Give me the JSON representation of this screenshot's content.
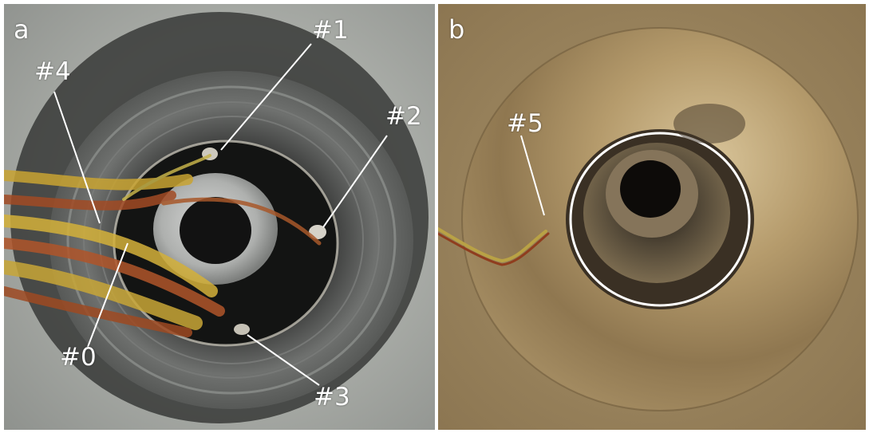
{
  "figure": {
    "panels": [
      {
        "letter": "a",
        "callouts": [
          "#1",
          "#4",
          "#2",
          "#0",
          "#3"
        ]
      },
      {
        "letter": "b",
        "callouts": [
          "#5"
        ]
      }
    ]
  }
}
